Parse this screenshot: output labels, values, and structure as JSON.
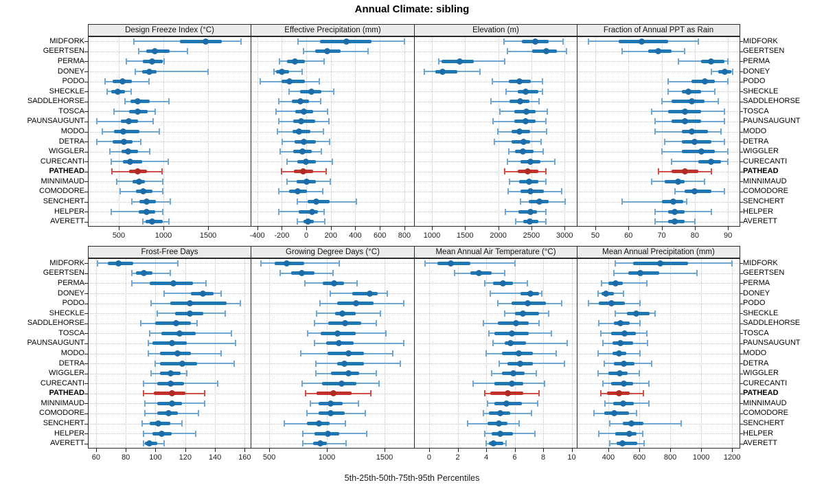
{
  "title": "Annual Climate: sibling",
  "caption": "5th-25th-50th-75th-95th Percentiles",
  "highlight_station": "PATHEAD",
  "colors": {
    "blue_box": "#1f77b4",
    "blue_whisker": "#6ea6d4",
    "blue_dot": "#1b6ca8",
    "red_box": "#c2302a",
    "red_whisker": "#d05049",
    "red_dot": "#b02a24",
    "grid": "#c6c6c6",
    "strip_bg": "#ececec",
    "panel_border": "#2a2a2a"
  },
  "stations": [
    "MIDFORK",
    "GEERTSEN",
    "PERMA",
    "DONEY",
    "PODO",
    "SHECKLE",
    "SADDLEHORSE",
    "TOSCA",
    "PAUNSAUGUNT",
    "MODO",
    "DETRA",
    "WIGGLER",
    "CURECANTI",
    "PATHEAD",
    "MINNIMAUD",
    "COMODORE",
    "SENCHERT",
    "HELPER",
    "AVERETT"
  ],
  "chart_data": {
    "type": "dotplot-interval",
    "title": "Annual Climate: sibling",
    "percentile_labels": [
      "5th",
      "25th",
      "50th",
      "75th",
      "95th"
    ],
    "legend_position": "none",
    "grid": true,
    "layout_grid": "2 rows x 4 columns",
    "panels": [
      {
        "title": "Design Freeze Index (°C)",
        "grid_row": 1,
        "ticks": [
          500,
          1000,
          1500
        ],
        "xlim": [
          154,
          1976
        ],
        "values": [
          [
            670,
            1185,
            1470,
            1655,
            1870
          ],
          [
            725,
            810,
            900,
            1070,
            1270
          ],
          [
            585,
            770,
            870,
            990,
            1010
          ],
          [
            685,
            760,
            840,
            925,
            1500
          ],
          [
            345,
            430,
            545,
            645,
            840
          ],
          [
            370,
            415,
            490,
            570,
            640
          ],
          [
            570,
            630,
            715,
            845,
            1060
          ],
          [
            445,
            615,
            710,
            825,
            910
          ],
          [
            255,
            520,
            615,
            715,
            885
          ],
          [
            315,
            445,
            550,
            730,
            955
          ],
          [
            255,
            430,
            560,
            655,
            745
          ],
          [
            400,
            530,
            600,
            715,
            845
          ],
          [
            415,
            545,
            630,
            760,
            1055
          ],
          [
            425,
            615,
            715,
            815,
            985
          ],
          [
            475,
            655,
            725,
            790,
            990
          ],
          [
            515,
            690,
            770,
            875,
            990
          ],
          [
            645,
            730,
            810,
            915,
            1075
          ],
          [
            415,
            725,
            810,
            910,
            990
          ],
          [
            770,
            800,
            870,
            990,
            1060
          ]
        ]
      },
      {
        "title": "Effective Precipitation (mm)",
        "grid_row": 1,
        "ticks": [
          -400,
          -200,
          0,
          200,
          400,
          600,
          800
        ],
        "xlim": [
          -454,
          879
        ],
        "values": [
          [
            -65,
            110,
            330,
            530,
            800
          ],
          [
            -20,
            75,
            170,
            280,
            505
          ],
          [
            -220,
            -155,
            -90,
            -10,
            145
          ],
          [
            -265,
            -245,
            -200,
            -140,
            -35
          ],
          [
            -375,
            -200,
            -135,
            -10,
            105
          ],
          [
            -140,
            -50,
            40,
            125,
            225
          ],
          [
            -225,
            -120,
            -50,
            20,
            120
          ],
          [
            -245,
            -90,
            -20,
            55,
            175
          ],
          [
            -225,
            -105,
            -40,
            75,
            185
          ],
          [
            -235,
            -110,
            -60,
            35,
            140
          ],
          [
            -195,
            -95,
            -20,
            80,
            190
          ],
          [
            -215,
            -105,
            -30,
            45,
            125
          ],
          [
            -155,
            -75,
            -5,
            80,
            215
          ],
          [
            -200,
            -100,
            -25,
            55,
            160
          ],
          [
            -155,
            -80,
            5,
            80,
            195
          ],
          [
            -225,
            -140,
            -70,
            5,
            135
          ],
          [
            -75,
            10,
            80,
            190,
            410
          ],
          [
            -225,
            -60,
            45,
            95,
            145
          ],
          [
            -75,
            -20,
            15,
            60,
            150
          ]
        ]
      },
      {
        "title": "Elevation (m)",
        "grid_row": 1,
        "ticks": [
          1000,
          1500,
          2000,
          2500,
          3000
        ],
        "xlim": [
          731,
          3184
        ],
        "values": [
          [
            2090,
            2355,
            2560,
            2760,
            2975
          ],
          [
            2140,
            2510,
            2720,
            2880,
            3030
          ],
          [
            1105,
            1145,
            1415,
            1630,
            2095
          ],
          [
            885,
            1050,
            1165,
            1385,
            1725
          ],
          [
            1910,
            2160,
            2315,
            2490,
            2665
          ],
          [
            2120,
            2295,
            2410,
            2600,
            2670
          ],
          [
            1890,
            2170,
            2325,
            2470,
            2615
          ],
          [
            2025,
            2240,
            2420,
            2565,
            2740
          ],
          [
            1920,
            2240,
            2410,
            2565,
            2720
          ],
          [
            1995,
            2200,
            2315,
            2480,
            2730
          ],
          [
            1940,
            2200,
            2385,
            2480,
            2645
          ],
          [
            2160,
            2250,
            2375,
            2530,
            2675
          ],
          [
            2140,
            2335,
            2490,
            2635,
            2855
          ],
          [
            2095,
            2295,
            2440,
            2605,
            2720
          ],
          [
            2170,
            2315,
            2460,
            2600,
            2720
          ],
          [
            2150,
            2335,
            2490,
            2690,
            2955
          ],
          [
            2335,
            2460,
            2625,
            2760,
            3010
          ],
          [
            2110,
            2305,
            2490,
            2585,
            2720
          ],
          [
            2265,
            2375,
            2470,
            2605,
            2720
          ]
        ]
      },
      {
        "title": "Fraction of Annual PPT as Rain",
        "grid_row": 1,
        "ticks": [
          50,
          60,
          70,
          80,
          90
        ],
        "xlim": [
          44.4,
          93.5
        ],
        "values": [
          [
            48,
            57,
            64,
            72,
            81
          ],
          [
            58,
            66,
            69,
            73,
            77
          ],
          [
            75,
            82,
            85,
            89,
            90
          ],
          [
            85,
            87,
            89,
            91,
            91.5
          ],
          [
            72,
            79,
            83,
            86,
            90
          ],
          [
            72,
            76,
            78,
            82,
            86
          ],
          [
            70,
            73,
            79,
            83,
            87
          ],
          [
            67,
            72,
            77,
            82,
            89
          ],
          [
            68,
            73,
            77,
            82,
            89
          ],
          [
            68,
            76,
            79,
            84,
            88
          ],
          [
            71,
            76,
            80,
            85,
            89
          ],
          [
            70,
            76,
            82,
            86,
            90
          ],
          [
            73,
            81,
            85,
            88,
            90
          ],
          [
            69,
            73,
            77,
            81,
            85
          ],
          [
            67,
            71,
            75,
            77,
            83
          ],
          [
            74,
            77,
            80,
            85,
            89
          ],
          [
            58,
            70,
            73.5,
            76.5,
            77.5
          ],
          [
            68,
            72,
            74,
            77,
            85
          ],
          [
            68,
            72,
            74,
            77,
            80
          ]
        ]
      },
      {
        "title": "Frost-Free Days",
        "grid_row": 2,
        "ticks": [
          60,
          80,
          100,
          120,
          140,
          160
        ],
        "xlim": [
          54.5,
          164
        ],
        "values": [
          [
            61,
            68,
            75,
            85,
            115
          ],
          [
            84,
            87,
            92,
            98,
            110
          ],
          [
            84,
            96,
            112,
            125,
            134
          ],
          [
            106,
            124,
            132,
            139,
            144
          ],
          [
            97,
            110,
            123,
            148,
            157
          ],
          [
            101,
            113,
            123,
            132,
            147
          ],
          [
            90,
            100,
            114,
            124,
            128
          ],
          [
            96,
            104,
            116,
            127,
            151
          ],
          [
            95,
            98,
            111,
            121,
            154
          ],
          [
            95,
            103,
            115,
            124,
            144
          ],
          [
            100,
            103,
            118,
            128,
            153
          ],
          [
            97,
            103,
            110,
            117,
            121
          ],
          [
            92,
            101,
            110,
            119,
            142
          ],
          [
            92,
            99,
            111,
            120,
            133
          ],
          [
            93,
            101,
            111,
            118,
            133
          ],
          [
            93,
            101,
            109,
            115,
            129
          ],
          [
            91,
            96,
            102,
            110,
            118
          ],
          [
            92,
            98,
            104,
            111,
            127
          ],
          [
            92,
            93,
            96,
            101,
            106
          ]
        ]
      },
      {
        "title": "Growing Degree Days (°C)",
        "grid_row": 2,
        "ticks": [
          500,
          1000,
          1500
        ],
        "xlim": [
          339,
          1756
        ],
        "values": [
          [
            430,
            550,
            650,
            805,
            1105
          ],
          [
            595,
            690,
            785,
            895,
            1055
          ],
          [
            810,
            965,
            1060,
            1150,
            1260
          ],
          [
            1030,
            1220,
            1370,
            1440,
            1525
          ],
          [
            940,
            1090,
            1250,
            1405,
            1665
          ],
          [
            910,
            1070,
            1135,
            1250,
            1465
          ],
          [
            895,
            1010,
            1155,
            1295,
            1430
          ],
          [
            835,
            945,
            1090,
            1250,
            1510
          ],
          [
            895,
            995,
            1105,
            1230,
            1665
          ],
          [
            775,
            1005,
            1190,
            1320,
            1570
          ],
          [
            905,
            1090,
            1150,
            1320,
            1635
          ],
          [
            905,
            1035,
            1190,
            1280,
            1430
          ],
          [
            785,
            960,
            1130,
            1255,
            1450
          ],
          [
            815,
            910,
            1055,
            1215,
            1380
          ],
          [
            855,
            930,
            1030,
            1135,
            1275
          ],
          [
            825,
            930,
            1035,
            1155,
            1335
          ],
          [
            630,
            825,
            930,
            1025,
            1160
          ],
          [
            790,
            895,
            1010,
            1105,
            1345
          ],
          [
            790,
            880,
            945,
            1000,
            1165
          ]
        ]
      },
      {
        "title": "Mean Annual Air Temperature (°C)",
        "grid_row": 2,
        "ticks": [
          0,
          2,
          4,
          6,
          8,
          10
        ],
        "xlim": [
          -1.06,
          10.36
        ],
        "values": [
          [
            -0.3,
            0.6,
            1.5,
            2.9,
            6.0
          ],
          [
            1.8,
            2.9,
            3.5,
            4.4,
            5.3
          ],
          [
            3.9,
            4.5,
            5.2,
            5.9,
            6.9
          ],
          [
            4.3,
            6.4,
            7.1,
            7.7,
            7.9
          ],
          [
            4.8,
            5.8,
            6.9,
            8.2,
            9.3
          ],
          [
            5.3,
            6.0,
            6.6,
            7.7,
            8.4
          ],
          [
            3.8,
            4.8,
            6.1,
            7.0,
            7.7
          ],
          [
            4.2,
            4.6,
            5.8,
            7.0,
            8.6
          ],
          [
            4.5,
            5.3,
            5.7,
            6.8,
            9.7
          ],
          [
            4.0,
            5.1,
            6.3,
            7.3,
            8.9
          ],
          [
            4.9,
            5.5,
            6.4,
            7.3,
            9.5
          ],
          [
            4.4,
            5.1,
            5.9,
            6.7,
            7.5
          ],
          [
            3.1,
            4.6,
            5.8,
            6.6,
            8.1
          ],
          [
            3.9,
            4.3,
            5.5,
            6.6,
            7.7
          ],
          [
            4.1,
            4.6,
            5.4,
            6.5,
            7.6
          ],
          [
            3.8,
            4.2,
            5.0,
            5.7,
            7.2
          ],
          [
            2.7,
            4.1,
            4.9,
            5.5,
            6.3
          ],
          [
            3.9,
            4.4,
            5.0,
            5.9,
            7.4
          ],
          [
            4.0,
            4.2,
            4.5,
            5.2,
            5.4
          ]
        ]
      },
      {
        "title": "Mean Annual Precipitation (mm)",
        "grid_row": 2,
        "ticks": [
          400,
          600,
          800,
          1000,
          1200
        ],
        "xlim": [
          196,
          1248
        ],
        "values": [
          [
            445,
            560,
            735,
            915,
            1200
          ],
          [
            435,
            530,
            605,
            730,
            975
          ],
          [
            355,
            400,
            445,
            495,
            650
          ],
          [
            335,
            355,
            385,
            435,
            500
          ],
          [
            270,
            340,
            420,
            505,
            605
          ],
          [
            445,
            520,
            580,
            665,
            700
          ],
          [
            340,
            435,
            480,
            540,
            605
          ],
          [
            350,
            420,
            505,
            580,
            650
          ],
          [
            365,
            425,
            480,
            560,
            655
          ],
          [
            335,
            425,
            470,
            515,
            605
          ],
          [
            375,
            435,
            500,
            570,
            680
          ],
          [
            335,
            400,
            475,
            525,
            600
          ],
          [
            365,
            420,
            500,
            560,
            660
          ],
          [
            350,
            390,
            470,
            540,
            625
          ],
          [
            380,
            430,
            495,
            565,
            660
          ],
          [
            305,
            375,
            440,
            535,
            580
          ],
          [
            410,
            495,
            550,
            625,
            870
          ],
          [
            340,
            445,
            535,
            580,
            620
          ],
          [
            410,
            455,
            490,
            585,
            630
          ]
        ]
      }
    ]
  }
}
